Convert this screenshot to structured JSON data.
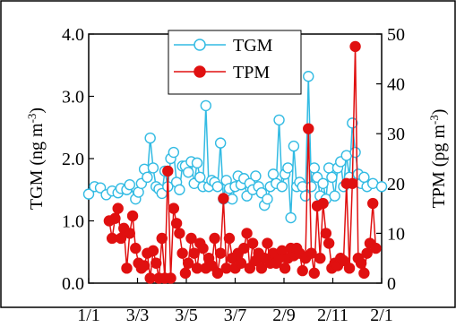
{
  "chart_data": {
    "type": "line",
    "title": "",
    "x": {
      "tick_labels": [
        "1/1",
        "3/3",
        "3/5",
        "3/7",
        "2/9",
        "2/11",
        "2/1"
      ]
    },
    "y_left": {
      "label_main": "TGM (ng m",
      "label_sup": "-3",
      "label_close": ")",
      "range": [
        0,
        4
      ],
      "ticks": [
        "0.0",
        "1.0",
        "2.0",
        "3.0",
        "4.0"
      ]
    },
    "y_right": {
      "label_main": "TPM (pg m",
      "label_sup": "-3",
      "label_close": ")",
      "range": [
        0,
        50
      ],
      "ticks": [
        "0",
        "10",
        "20",
        "30",
        "40",
        "50"
      ]
    },
    "legend": {
      "placement": "top-center"
    },
    "grid": false,
    "series": [
      {
        "name": "TGM",
        "axis": "left",
        "color": "#33BBE3",
        "marker": "open-circle",
        "points": [
          [
            0.0,
            1.43
          ],
          [
            0.02,
            1.55
          ],
          [
            0.04,
            1.53
          ],
          [
            0.06,
            1.42
          ],
          [
            0.08,
            1.48
          ],
          [
            0.1,
            1.45
          ],
          [
            0.11,
            1.52
          ],
          [
            0.13,
            1.5
          ],
          [
            0.14,
            1.58
          ],
          [
            0.16,
            1.35
          ],
          [
            0.17,
            1.46
          ],
          [
            0.18,
            1.6
          ],
          [
            0.19,
            1.83
          ],
          [
            0.2,
            1.7
          ],
          [
            0.21,
            2.33
          ],
          [
            0.22,
            1.85
          ],
          [
            0.23,
            1.55
          ],
          [
            0.24,
            1.51
          ],
          [
            0.25,
            1.44
          ],
          [
            0.26,
            1.8
          ],
          [
            0.27,
            1.55
          ],
          [
            0.28,
            2.0
          ],
          [
            0.29,
            2.1
          ],
          [
            0.3,
            1.62
          ],
          [
            0.31,
            1.5
          ],
          [
            0.32,
            1.88
          ],
          [
            0.33,
            1.88
          ],
          [
            0.34,
            1.78
          ],
          [
            0.35,
            1.95
          ],
          [
            0.36,
            1.6
          ],
          [
            0.37,
            1.93
          ],
          [
            0.38,
            1.7
          ],
          [
            0.39,
            1.55
          ],
          [
            0.4,
            2.85
          ],
          [
            0.41,
            1.55
          ],
          [
            0.42,
            1.65
          ],
          [
            0.43,
            1.62
          ],
          [
            0.44,
            1.55
          ],
          [
            0.45,
            2.25
          ],
          [
            0.46,
            1.35
          ],
          [
            0.47,
            1.65
          ],
          [
            0.48,
            1.52
          ],
          [
            0.49,
            1.35
          ],
          [
            0.5,
            1.55
          ],
          [
            0.51,
            1.72
          ],
          [
            0.52,
            1.58
          ],
          [
            0.53,
            1.68
          ],
          [
            0.54,
            1.4
          ],
          [
            0.55,
            1.6
          ],
          [
            0.56,
            1.5
          ],
          [
            0.57,
            1.72
          ],
          [
            0.58,
            1.55
          ],
          [
            0.59,
            1.45
          ],
          [
            0.6,
            1.25
          ],
          [
            0.61,
            1.35
          ],
          [
            0.62,
            1.55
          ],
          [
            0.63,
            1.75
          ],
          [
            0.64,
            1.6
          ],
          [
            0.65,
            2.62
          ],
          [
            0.66,
            1.55
          ],
          [
            0.67,
            1.75
          ],
          [
            0.68,
            1.85
          ],
          [
            0.69,
            1.05
          ],
          [
            0.7,
            2.2
          ],
          [
            0.71,
            1.55
          ],
          [
            0.72,
            1.62
          ],
          [
            0.73,
            1.55
          ],
          [
            0.74,
            1.4
          ],
          [
            0.75,
            3.32
          ],
          [
            0.76,
            1.55
          ],
          [
            0.77,
            1.85
          ],
          [
            0.78,
            1.7
          ],
          [
            0.79,
            1.4
          ],
          [
            0.8,
            1.6
          ],
          [
            0.81,
            1.35
          ],
          [
            0.82,
            1.85
          ],
          [
            0.83,
            1.7
          ],
          [
            0.84,
            1.4
          ],
          [
            0.85,
            1.85
          ],
          [
            0.86,
            1.95
          ],
          [
            0.87,
            1.55
          ],
          [
            0.88,
            2.05
          ],
          [
            0.89,
            1.7
          ],
          [
            0.9,
            2.57
          ],
          [
            0.91,
            2.1
          ],
          [
            0.92,
            1.75
          ],
          [
            0.93,
            1.6
          ],
          [
            0.94,
            1.7
          ],
          [
            0.95,
            1.55
          ],
          [
            0.97,
            1.6
          ],
          [
            1.0,
            1.55
          ]
        ]
      },
      {
        "name": "TPM",
        "axis": "right",
        "color": "#E01010",
        "marker": "filled-circle",
        "points": [
          [
            0.07,
            12.5
          ],
          [
            0.08,
            9
          ],
          [
            0.09,
            13
          ],
          [
            0.1,
            15
          ],
          [
            0.11,
            9
          ],
          [
            0.12,
            11
          ],
          [
            0.13,
            3
          ],
          [
            0.14,
            10
          ],
          [
            0.15,
            13.5
          ],
          [
            0.16,
            7
          ],
          [
            0.17,
            4
          ],
          [
            0.18,
            3
          ],
          [
            0.19,
            3.5
          ],
          [
            0.2,
            6
          ],
          [
            0.21,
            1
          ],
          [
            0.22,
            6.5
          ],
          [
            0.23,
            4
          ],
          [
            0.24,
            1
          ],
          [
            0.25,
            9
          ],
          [
            0.26,
            1
          ],
          [
            0.27,
            22.5
          ],
          [
            0.28,
            1
          ],
          [
            0.29,
            15
          ],
          [
            0.3,
            12
          ],
          [
            0.31,
            10
          ],
          [
            0.32,
            6
          ],
          [
            0.33,
            2
          ],
          [
            0.34,
            4
          ],
          [
            0.35,
            9
          ],
          [
            0.36,
            6
          ],
          [
            0.37,
            3
          ],
          [
            0.38,
            8
          ],
          [
            0.39,
            7
          ],
          [
            0.4,
            3
          ],
          [
            0.41,
            5
          ],
          [
            0.42,
            3.5
          ],
          [
            0.43,
            9
          ],
          [
            0.44,
            2
          ],
          [
            0.45,
            6
          ],
          [
            0.46,
            17
          ],
          [
            0.47,
            3
          ],
          [
            0.48,
            9
          ],
          [
            0.49,
            5
          ],
          [
            0.5,
            3
          ],
          [
            0.51,
            6
          ],
          [
            0.52,
            4
          ],
          [
            0.53,
            7
          ],
          [
            0.54,
            10
          ],
          [
            0.55,
            3
          ],
          [
            0.56,
            8
          ],
          [
            0.57,
            4.5
          ],
          [
            0.58,
            6
          ],
          [
            0.59,
            3
          ],
          [
            0.6,
            5
          ],
          [
            0.61,
            8
          ],
          [
            0.62,
            4
          ],
          [
            0.63,
            6
          ],
          [
            0.64,
            4
          ],
          [
            0.65,
            5
          ],
          [
            0.66,
            6.5
          ],
          [
            0.67,
            3
          ],
          [
            0.68,
            5
          ],
          [
            0.69,
            7
          ],
          [
            0.7,
            5.5
          ],
          [
            0.71,
            7
          ],
          [
            0.72,
            6
          ],
          [
            0.73,
            2.5
          ],
          [
            0.74,
            5
          ],
          [
            0.75,
            31
          ],
          [
            0.76,
            6
          ],
          [
            0.77,
            2
          ],
          [
            0.78,
            15.5
          ],
          [
            0.79,
            5
          ],
          [
            0.8,
            16
          ],
          [
            0.81,
            10
          ],
          [
            0.82,
            8
          ],
          [
            0.83,
            3
          ],
          [
            0.84,
            4
          ],
          [
            0.85,
            3.5
          ],
          [
            0.86,
            5
          ],
          [
            0.87,
            4.5
          ],
          [
            0.88,
            20
          ],
          [
            0.89,
            3
          ],
          [
            0.9,
            20
          ],
          [
            0.91,
            47.5
          ],
          [
            0.92,
            5
          ],
          [
            0.93,
            4
          ],
          [
            0.94,
            2
          ],
          [
            0.95,
            6
          ],
          [
            0.96,
            8
          ],
          [
            0.97,
            16
          ],
          [
            0.98,
            7
          ]
        ]
      }
    ]
  }
}
